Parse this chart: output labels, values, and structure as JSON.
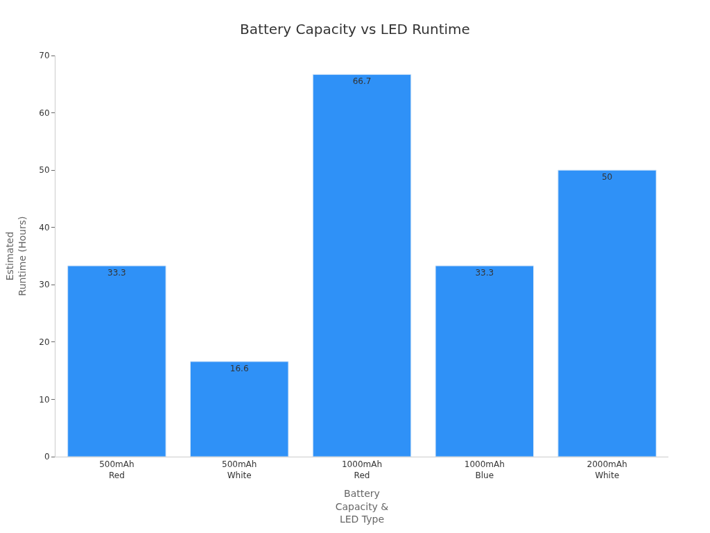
{
  "chart_data": {
    "type": "bar",
    "title": "Battery Capacity vs LED Runtime",
    "xlabel": "Battery\nCapacity &\nLED Type",
    "ylabel": "Estimated\nRuntime (Hours)",
    "categories": [
      "500mAh\nRed",
      "500mAh\nWhite",
      "1000mAh\nRed",
      "1000mAh\nBlue",
      "2000mAh\nWhite"
    ],
    "values": [
      33.3,
      16.6,
      66.7,
      33.3,
      50
    ],
    "color": "#2f91f7",
    "ylim": [
      0,
      70
    ],
    "yticks": [
      0,
      10,
      20,
      30,
      40,
      50,
      60,
      70
    ],
    "data_labels": true
  }
}
